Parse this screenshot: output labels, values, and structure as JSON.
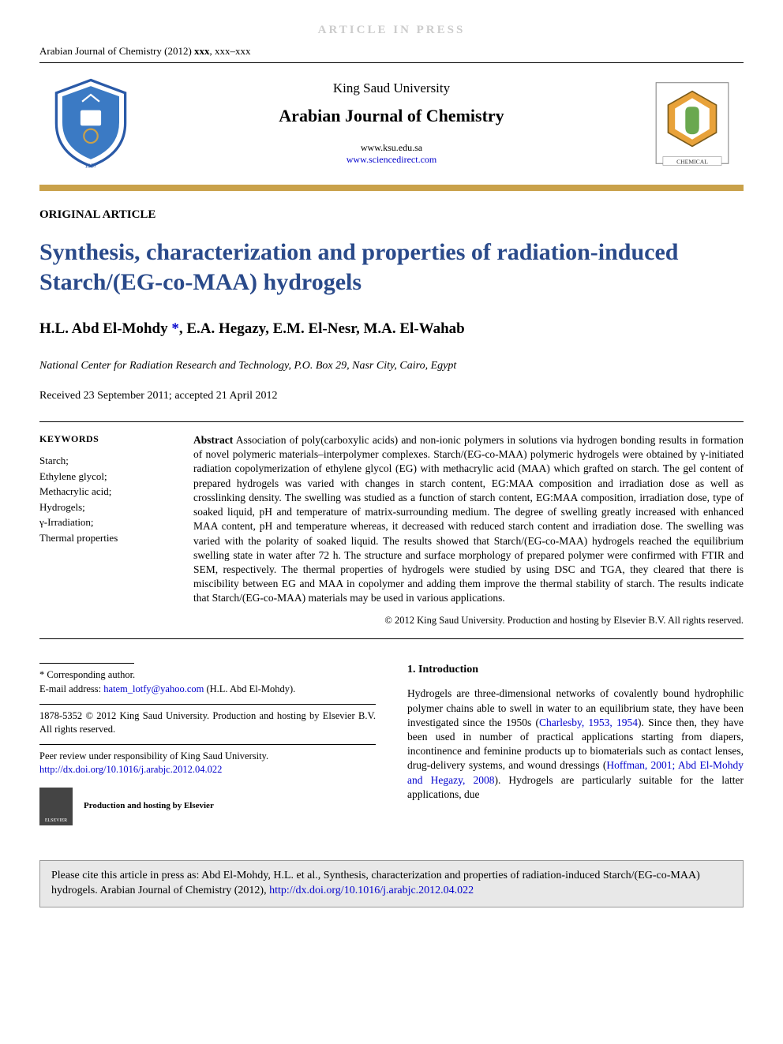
{
  "banner": {
    "article_in_press": "ARTICLE IN PRESS",
    "journal_ref_prefix": "Arabian Journal of Chemistry (2012) ",
    "journal_ref_bold": "xxx",
    "journal_ref_suffix": ", xxx–xxx"
  },
  "header": {
    "university": "King Saud University",
    "journal": "Arabian Journal of Chemistry",
    "link1": "www.ksu.edu.sa",
    "link2": "www.sciencedirect.com",
    "left_logo_label": "King Saud University crest",
    "right_logo_label": "Saudi Chemical Society",
    "right_logo_caption": "CHEMICAL"
  },
  "article": {
    "type": "ORIGINAL ARTICLE",
    "title": "Synthesis, characterization and properties of radiation-induced Starch/(EG-co-MAA) hydrogels",
    "authors_html": "H.L. Abd El-Mohdy <span class='corr'>*</span>, E.A. Hegazy, E.M. El-Nesr, M.A. El-Wahab",
    "affiliation": "National Center for Radiation Research and Technology, P.O. Box 29, Nasr City, Cairo, Egypt",
    "dates": "Received 23 September 2011; accepted 21 April 2012"
  },
  "keywords": {
    "heading": "KEYWORDS",
    "items": [
      "Starch;",
      "Ethylene glycol;",
      "Methacrylic acid;",
      "Hydrogels;",
      "γ-Irradiation;",
      "Thermal properties"
    ]
  },
  "abstract": {
    "label": "Abstract",
    "text": "Association of poly(carboxylic acids) and non-ionic polymers in solutions via hydrogen bonding results in formation of novel polymeric materials–interpolymer complexes. Starch/(EG-co-MAA) polymeric hydrogels were obtained by γ-initiated radiation copolymerization of ethylene glycol (EG) with methacrylic acid (MAA) which grafted on starch. The gel content of prepared hydrogels was varied with changes in starch content, EG:MAA composition and irradiation dose as well as crosslinking density. The swelling was studied as a function of starch content, EG:MAA composition, irradiation dose, type of soaked liquid, pH and temperature of matrix-surrounding medium. The degree of swelling greatly increased with enhanced MAA content, pH and temperature whereas, it decreased with reduced starch content and irradiation dose. The swelling was varied with the polarity of soaked liquid. The results showed that Starch/(EG-co-MAA) hydrogels reached the equilibrium swelling state in water after 72 h. The structure and surface morphology of prepared polymer were confirmed with FTIR and SEM, respectively. The thermal properties of hydrogels were studied by using DSC and TGA, they cleared that there is miscibility between EG and MAA in copolymer and adding them improve the thermal stability of starch. The results indicate that Starch/(EG-co-MAA) materials may be used in various applications.",
    "copyright": "© 2012 King Saud University. Production and hosting by Elsevier B.V. All rights reserved."
  },
  "footer_left": {
    "corresponding": "* Corresponding author.",
    "email_label": "E-mail address: ",
    "email": "hatem_lotfy@yahoo.com",
    "email_suffix": " (H.L. Abd El-Mohdy).",
    "issn": "1878-5352 © 2012 King Saud University. Production and hosting by Elsevier B.V. All rights reserved.",
    "peer": "Peer review under responsibility of King Saud University.",
    "doi": "http://dx.doi.org/10.1016/j.arabjc.2012.04.022",
    "prod_host": "Production and hosting by Elsevier",
    "elsevier": "ELSEVIER"
  },
  "intro": {
    "heading": "1. Introduction",
    "p1_a": "Hydrogels are three-dimensional networks of covalently bound hydrophilic polymer chains able to swell in water to an equilibrium state, they have been investigated since the 1950s (",
    "ref1": "Charlesby, 1953, 1954",
    "p1_b": "). Since then, they have been used in number of practical applications starting from diapers, incontinence and feminine products up to biomaterials such as contact lenses, drug-delivery systems, and wound dressings (",
    "ref2": "Hoffman, 2001; Abd El-Mohdy and Hegazy, 2008",
    "p1_c": "). Hydrogels are particularly suitable for the latter applications, due"
  },
  "citebox": {
    "text_a": "Please cite this article in press as: Abd El-Mohdy, H.L. et al., Synthesis, characterization and properties of radiation-induced Starch/(EG-co-MAA) hydrogels. Arabian Journal of Chemistry (2012), ",
    "doi": "http://dx.doi.org/10.1016/j.arabjc.2012.04.022"
  },
  "colors": {
    "title_color": "#2a4a8a",
    "gold_bar": "#c9a14a",
    "link_color": "#0000cc",
    "cite_bg": "#e8e8e8",
    "in_press_color": "#cccccc"
  }
}
